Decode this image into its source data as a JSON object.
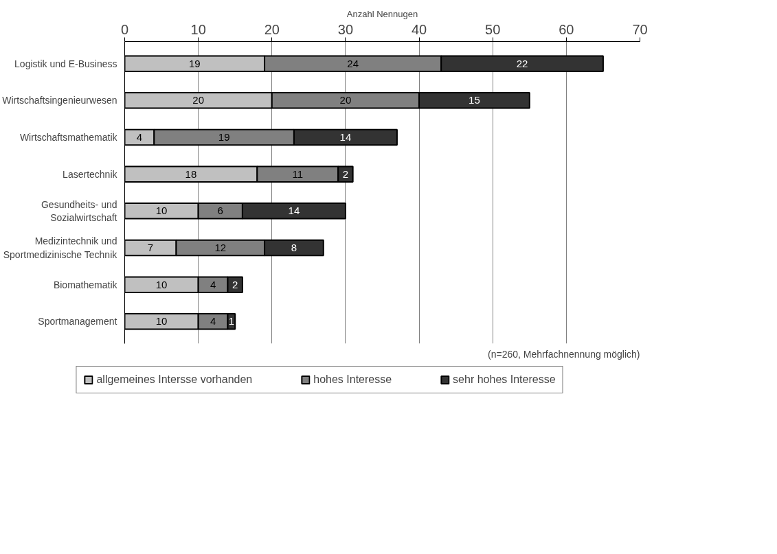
{
  "chart_data": {
    "type": "bar",
    "orientation": "horizontal",
    "stacked": true,
    "xlabel": "Anzahl Nennugen",
    "categories": [
      "Logistik und E-Business",
      "Wirtschaftsingenieurwesen",
      "Wirtschaftsmathematik",
      "Lasertechnik",
      "Gesundheits- und Sozialwirtschaft",
      "Medizintechnik und Sportmedizinische Technik",
      "Biomathematik",
      "Sportmanagement"
    ],
    "series": [
      {
        "name": "allgemeines Intersse vorhanden",
        "color": "#c0c0c0",
        "values": [
          19,
          20,
          4,
          18,
          10,
          7,
          10,
          10
        ]
      },
      {
        "name": "hohes Interesse",
        "color": "#808080",
        "values": [
          24,
          20,
          19,
          11,
          6,
          12,
          4,
          4
        ]
      },
      {
        "name": "sehr hohes Interesse",
        "color": "#333333",
        "values": [
          22,
          15,
          14,
          2,
          14,
          8,
          2,
          1
        ]
      }
    ],
    "xlim": [
      0,
      70
    ],
    "xticks": [
      0,
      10,
      20,
      30,
      40,
      50,
      60,
      70
    ],
    "grid": "x",
    "legend": "bottom",
    "data_labels": true,
    "annotations": [
      "(n=260, Mehrfachnennung möglich)"
    ]
  }
}
